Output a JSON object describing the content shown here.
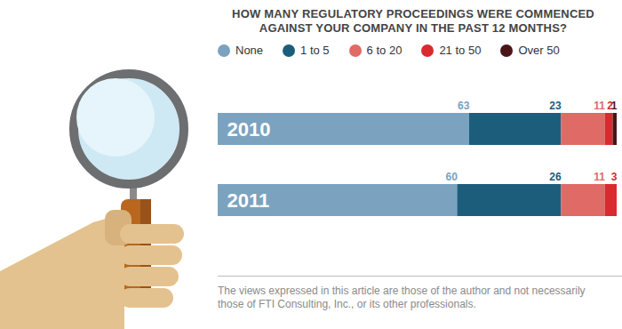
{
  "chart_data": {
    "type": "bar",
    "orientation": "horizontal",
    "stacked": true,
    "title": "HOW MANY REGULATORY PROCEEDINGS WERE COMMENCED AGAINST YOUR COMPANY IN THE PAST 12 MONTHS?",
    "categories": [
      "2010",
      "2011"
    ],
    "series": [
      {
        "name": "None",
        "color": "#7ba3bf",
        "values": [
          63,
          60
        ]
      },
      {
        "name": "1 to 5",
        "color": "#1d5d7c",
        "values": [
          23,
          26
        ]
      },
      {
        "name": "6 to 20",
        "color": "#e06a66",
        "values": [
          11,
          11
        ]
      },
      {
        "name": "21 to 50",
        "color": "#d92a2f",
        "values": [
          2,
          3
        ]
      },
      {
        "name": "Over 50",
        "color": "#4b1517",
        "values": [
          1,
          0
        ],
        "value_labels": [
          "1",
          null
        ]
      }
    ],
    "xlim": [
      0,
      100
    ],
    "data_labels": true,
    "tick_labels": false,
    "legend": "top",
    "annotations": [
      "The views expressed in this article are those of the author and not necessarily those of FTI Consulting, Inc., or its other professionals."
    ]
  }
}
